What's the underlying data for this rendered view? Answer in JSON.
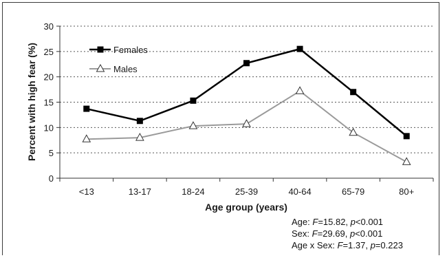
{
  "chart_data": {
    "type": "line",
    "title": "",
    "xlabel": "Age group (years)",
    "ylabel": "Percent with high fear (%)",
    "ylim": [
      0,
      30
    ],
    "yticks": [
      0,
      5,
      10,
      15,
      20,
      25,
      30
    ],
    "categories": [
      "<13",
      "13-17",
      "18-24",
      "25-39",
      "40-64",
      "65-79",
      "80+"
    ],
    "grid": "horizontal dotted",
    "legend": "top-left",
    "series": [
      {
        "name": "Females",
        "values": [
          13.7,
          11.3,
          15.3,
          22.7,
          25.5,
          17.0,
          8.3
        ],
        "color": "#000000",
        "marker": "filled-square"
      },
      {
        "name": "Males",
        "values": [
          7.7,
          8.0,
          10.3,
          10.7,
          17.2,
          9.0,
          3.2
        ],
        "color": "#9a9a9a",
        "marker": "open-triangle"
      }
    ],
    "annotations": [
      {
        "label": "Age",
        "F": "15.82",
        "p_rel": "<",
        "p": "0.001"
      },
      {
        "label": "Sex",
        "F": "29.69",
        "p_rel": "<",
        "p": "0.001"
      },
      {
        "label": "Age x Sex",
        "F": "1.37",
        "p_rel": "=",
        "p": "0.223"
      }
    ]
  }
}
